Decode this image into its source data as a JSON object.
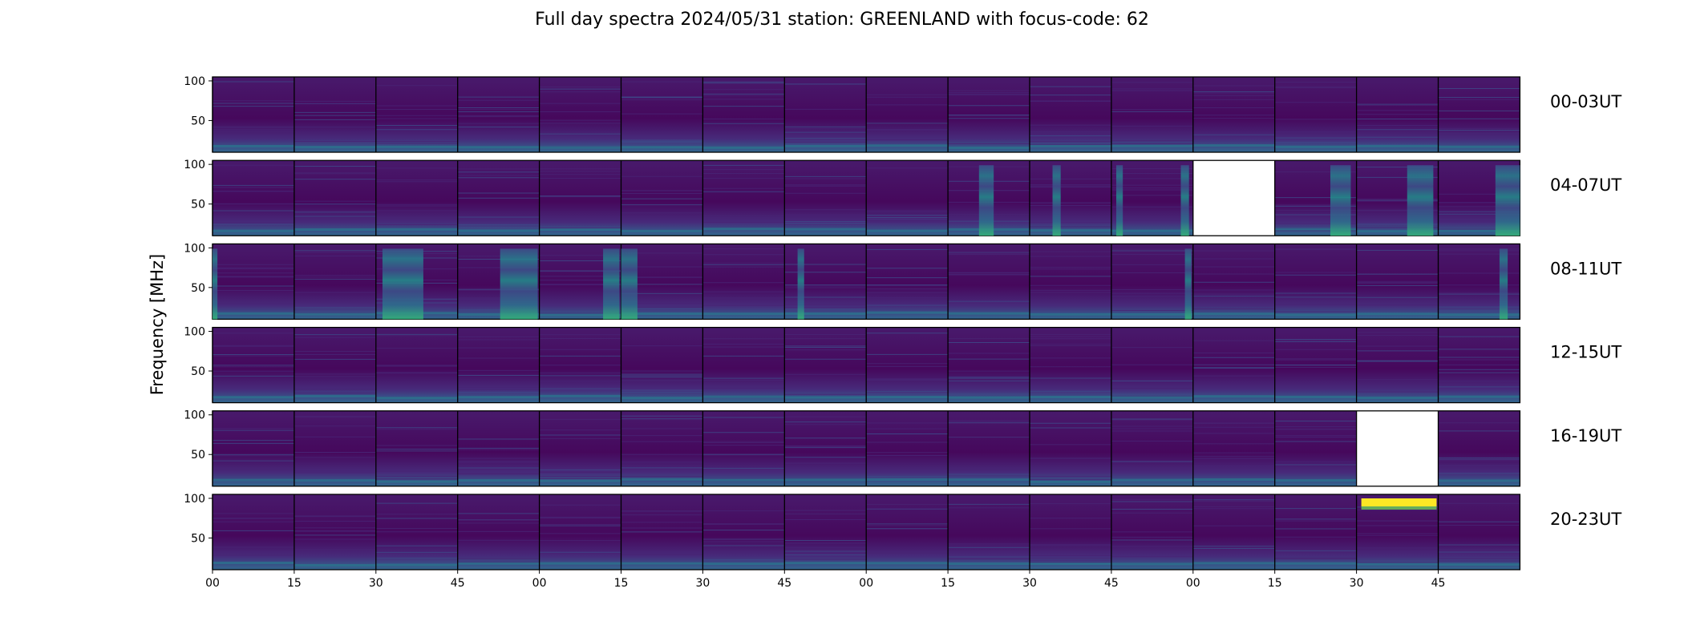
{
  "chart_data": {
    "type": "heatmap",
    "title": "Full day spectra 2024/05/31 station: GREENLAND with focus-code: 62",
    "ylabel": "Frequency [MHz]",
    "xlabel": "",
    "y_ticks": [
      50,
      100
    ],
    "ylim": [
      10,
      105
    ],
    "x_tick_labels": [
      "00",
      "15",
      "30",
      "45",
      "00",
      "15",
      "30",
      "45",
      "00",
      "15",
      "30",
      "45",
      "00",
      "15",
      "30",
      "45"
    ],
    "row_labels": [
      "00-03UT",
      "04-07UT",
      "08-11UT",
      "12-15UT",
      "16-19UT",
      "20-23UT"
    ],
    "panels_per_row": 16,
    "panel_minutes": 15,
    "missing_panels": [
      [
        1,
        12
      ],
      [
        4,
        14
      ]
    ],
    "colormap": "viridis",
    "colors": {
      "background": "#440154",
      "low": "#46085c",
      "mid": "#21908d",
      "high": "#fde725",
      "missing": "#ffffff"
    }
  }
}
